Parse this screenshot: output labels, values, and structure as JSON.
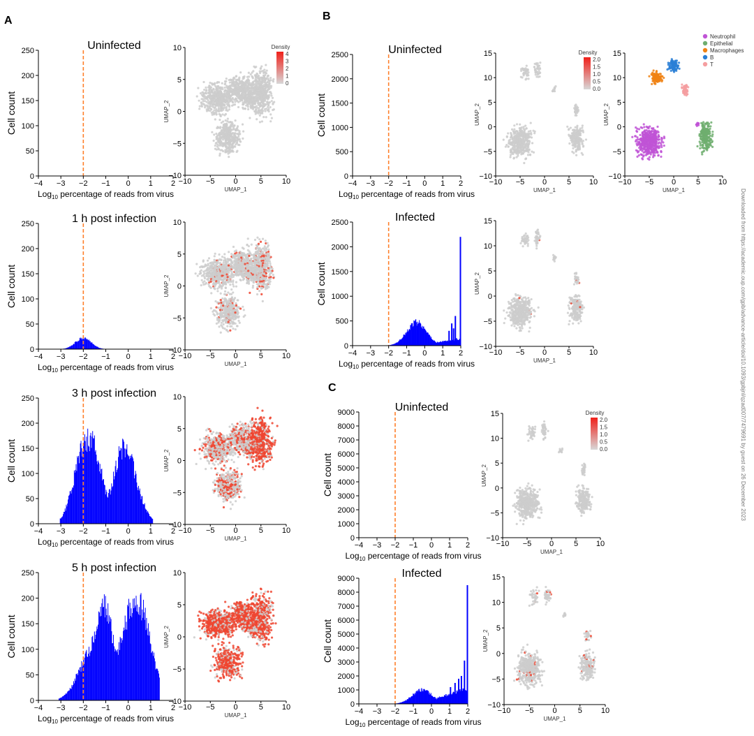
{
  "panels": {
    "A": "A",
    "B": "B",
    "C": "C"
  },
  "side_note": "Downloaded from https://academic.oup.com/gpb/advance-article/doi/10.1093/gpbjnl/qzad007/7479691 by guest on 26 December 2023",
  "common": {
    "hist_ylabel": "Cell count",
    "hist_xlabel_prefix": "Log",
    "hist_xlabel_sub": "10",
    "hist_xlabel_suffix": " percentage of reads from virus",
    "umap_xlabel": "UMAP_1",
    "umap_ylabel": "UMAP_2",
    "density_label": "Density"
  },
  "colors": {
    "bars": "#0000ff",
    "threshold": "#ff7f2a",
    "cells": "#cccccc",
    "virus": "#ee4530"
  },
  "legend_B": {
    "items": [
      {
        "label": "Neutrophil",
        "color": "#c054d6"
      },
      {
        "label": "Epithelial",
        "color": "#6fae6f"
      },
      {
        "label": "Macrophages",
        "color": "#f08214"
      },
      {
        "label": "B",
        "color": "#2a7fd6"
      },
      {
        "label": "T",
        "color": "#f59ea0"
      }
    ]
  },
  "chart_data": [
    {
      "id": "A-hist-uninf",
      "type": "bar",
      "title": "Uninfected",
      "xlabel": "Log10 percentage of reads from virus",
      "ylabel": "Cell count",
      "xlim": [
        -4,
        2
      ],
      "ylim": [
        0,
        250
      ],
      "yticks": [
        0,
        50,
        100,
        150,
        200,
        250
      ],
      "threshold": -2,
      "profile": "none"
    },
    {
      "id": "A-umap-uninf",
      "type": "scatter",
      "xlabel": "UMAP_1",
      "ylabel": "UMAP_2",
      "xlim": [
        -10,
        10
      ],
      "ylim": [
        -10,
        10
      ],
      "legend_title": "Density",
      "legend_ticks": [
        "4",
        "3",
        "2",
        "1",
        "0"
      ],
      "virus_fraction": 0
    },
    {
      "id": "A-hist-1h",
      "type": "bar",
      "title": "1 h post infection",
      "xlabel": "Log10 percentage of reads from virus",
      "ylabel": "Cell count",
      "xlim": [
        -4,
        2
      ],
      "ylim": [
        0,
        250
      ],
      "yticks": [
        0,
        50,
        100,
        150,
        200,
        250
      ],
      "threshold": -2,
      "profile": "1h"
    },
    {
      "id": "A-umap-1h",
      "type": "scatter",
      "xlabel": "UMAP_1",
      "ylabel": "UMAP_2",
      "xlim": [
        -10,
        10
      ],
      "ylim": [
        -10,
        10
      ],
      "virus_fraction": 0.12
    },
    {
      "id": "A-hist-3h",
      "type": "bar",
      "title": "3 h post infection",
      "xlabel": "Log10 percentage of reads from virus",
      "ylabel": "Cell count",
      "xlim": [
        -4,
        2
      ],
      "ylim": [
        0,
        250
      ],
      "yticks": [
        0,
        50,
        100,
        150,
        200,
        250
      ],
      "threshold": -2,
      "profile": "3h"
    },
    {
      "id": "A-umap-3h",
      "type": "scatter",
      "xlabel": "UMAP_1",
      "ylabel": "UMAP_2",
      "xlim": [
        -10,
        10
      ],
      "ylim": [
        -10,
        10
      ],
      "virus_fraction": 0.55
    },
    {
      "id": "A-hist-5h",
      "type": "bar",
      "title": "5 h post infection",
      "xlabel": "Log10 percentage of reads from virus",
      "ylabel": "Cell count",
      "xlim": [
        -4,
        2
      ],
      "ylim": [
        0,
        250
      ],
      "yticks": [
        0,
        50,
        100,
        150,
        200,
        250
      ],
      "threshold": -2,
      "profile": "5h"
    },
    {
      "id": "A-umap-5h",
      "type": "scatter",
      "xlabel": "UMAP_1",
      "ylabel": "UMAP_2",
      "xlim": [
        -10,
        10
      ],
      "ylim": [
        -10,
        10
      ],
      "virus_fraction": 0.75
    },
    {
      "id": "B-hist-uninf",
      "type": "bar",
      "title": "Uninfected",
      "xlabel": "Log10 percentage of reads from virus",
      "ylabel": "Cell count",
      "xlim": [
        -4,
        2
      ],
      "ylim": [
        0,
        2500
      ],
      "yticks": [
        0,
        500,
        1000,
        1500,
        2000,
        2500
      ],
      "threshold": -2,
      "profile": "none"
    },
    {
      "id": "B-umap-uninf",
      "type": "scatter",
      "xlabel": "UMAP_1",
      "ylabel": "UMAP_2",
      "xlim": [
        -10,
        10
      ],
      "ylim": [
        -10,
        15
      ],
      "legend_title": "Density",
      "legend_ticks": [
        "2.0",
        "1.5",
        "1.0",
        "0.5",
        "0.0"
      ],
      "virus_fraction": 0
    },
    {
      "id": "B-umap-celltype",
      "type": "scatter",
      "xlabel": "UMAP_1",
      "ylabel": "UMAP_2",
      "xlim": [
        -10,
        10
      ],
      "ylim": [
        -10,
        15
      ],
      "series": [
        "Neutrophil",
        "Epithelial",
        "Macrophages",
        "B",
        "T"
      ]
    },
    {
      "id": "B-hist-inf",
      "type": "bar",
      "title": "Infected",
      "xlabel": "Log10 percentage of reads from virus",
      "ylabel": "Cell count",
      "xlim": [
        -4,
        2
      ],
      "ylim": [
        0,
        2500
      ],
      "yticks": [
        0,
        500,
        1000,
        1500,
        2000,
        2500
      ],
      "threshold": -2,
      "profile": "infB",
      "peak_value": 2200
    },
    {
      "id": "B-umap-inf",
      "type": "scatter",
      "xlabel": "UMAP_1",
      "ylabel": "UMAP_2",
      "xlim": [
        -10,
        10
      ],
      "ylim": [
        -10,
        15
      ],
      "virus_fraction": 0.02
    },
    {
      "id": "C-hist-uninf",
      "type": "bar",
      "title": "Uninfected",
      "xlabel": "Log10 percentage of reads from virus",
      "ylabel": "Cell count",
      "xlim": [
        -4,
        2
      ],
      "ylim": [
        0,
        9000
      ],
      "yticks": [
        0,
        1000,
        2000,
        3000,
        4000,
        5000,
        6000,
        7000,
        8000,
        9000
      ],
      "threshold": -2,
      "profile": "none"
    },
    {
      "id": "C-umap-uninf",
      "type": "scatter",
      "xlabel": "UMAP_1",
      "ylabel": "UMAP_2",
      "xlim": [
        -10,
        10
      ],
      "ylim": [
        -10,
        15
      ],
      "legend_title": "Density",
      "legend_ticks": [
        "2.0",
        "1.5",
        "1.0",
        "0.5",
        "0.0"
      ],
      "virus_fraction": 0
    },
    {
      "id": "C-hist-inf",
      "type": "bar",
      "title": "Infected",
      "xlabel": "Log10 percentage of reads from virus",
      "ylabel": "Cell count",
      "xlim": [
        -4,
        2
      ],
      "ylim": [
        0,
        9000
      ],
      "yticks": [
        0,
        1000,
        2000,
        3000,
        4000,
        5000,
        6000,
        7000,
        8000,
        9000
      ],
      "threshold": -2,
      "profile": "infC",
      "peak_value": 8500
    },
    {
      "id": "C-umap-inf",
      "type": "scatter",
      "xlabel": "UMAP_1",
      "ylabel": "UMAP_2",
      "xlim": [
        -10,
        10
      ],
      "ylim": [
        -10,
        15
      ],
      "virus_fraction": 0.05
    }
  ]
}
